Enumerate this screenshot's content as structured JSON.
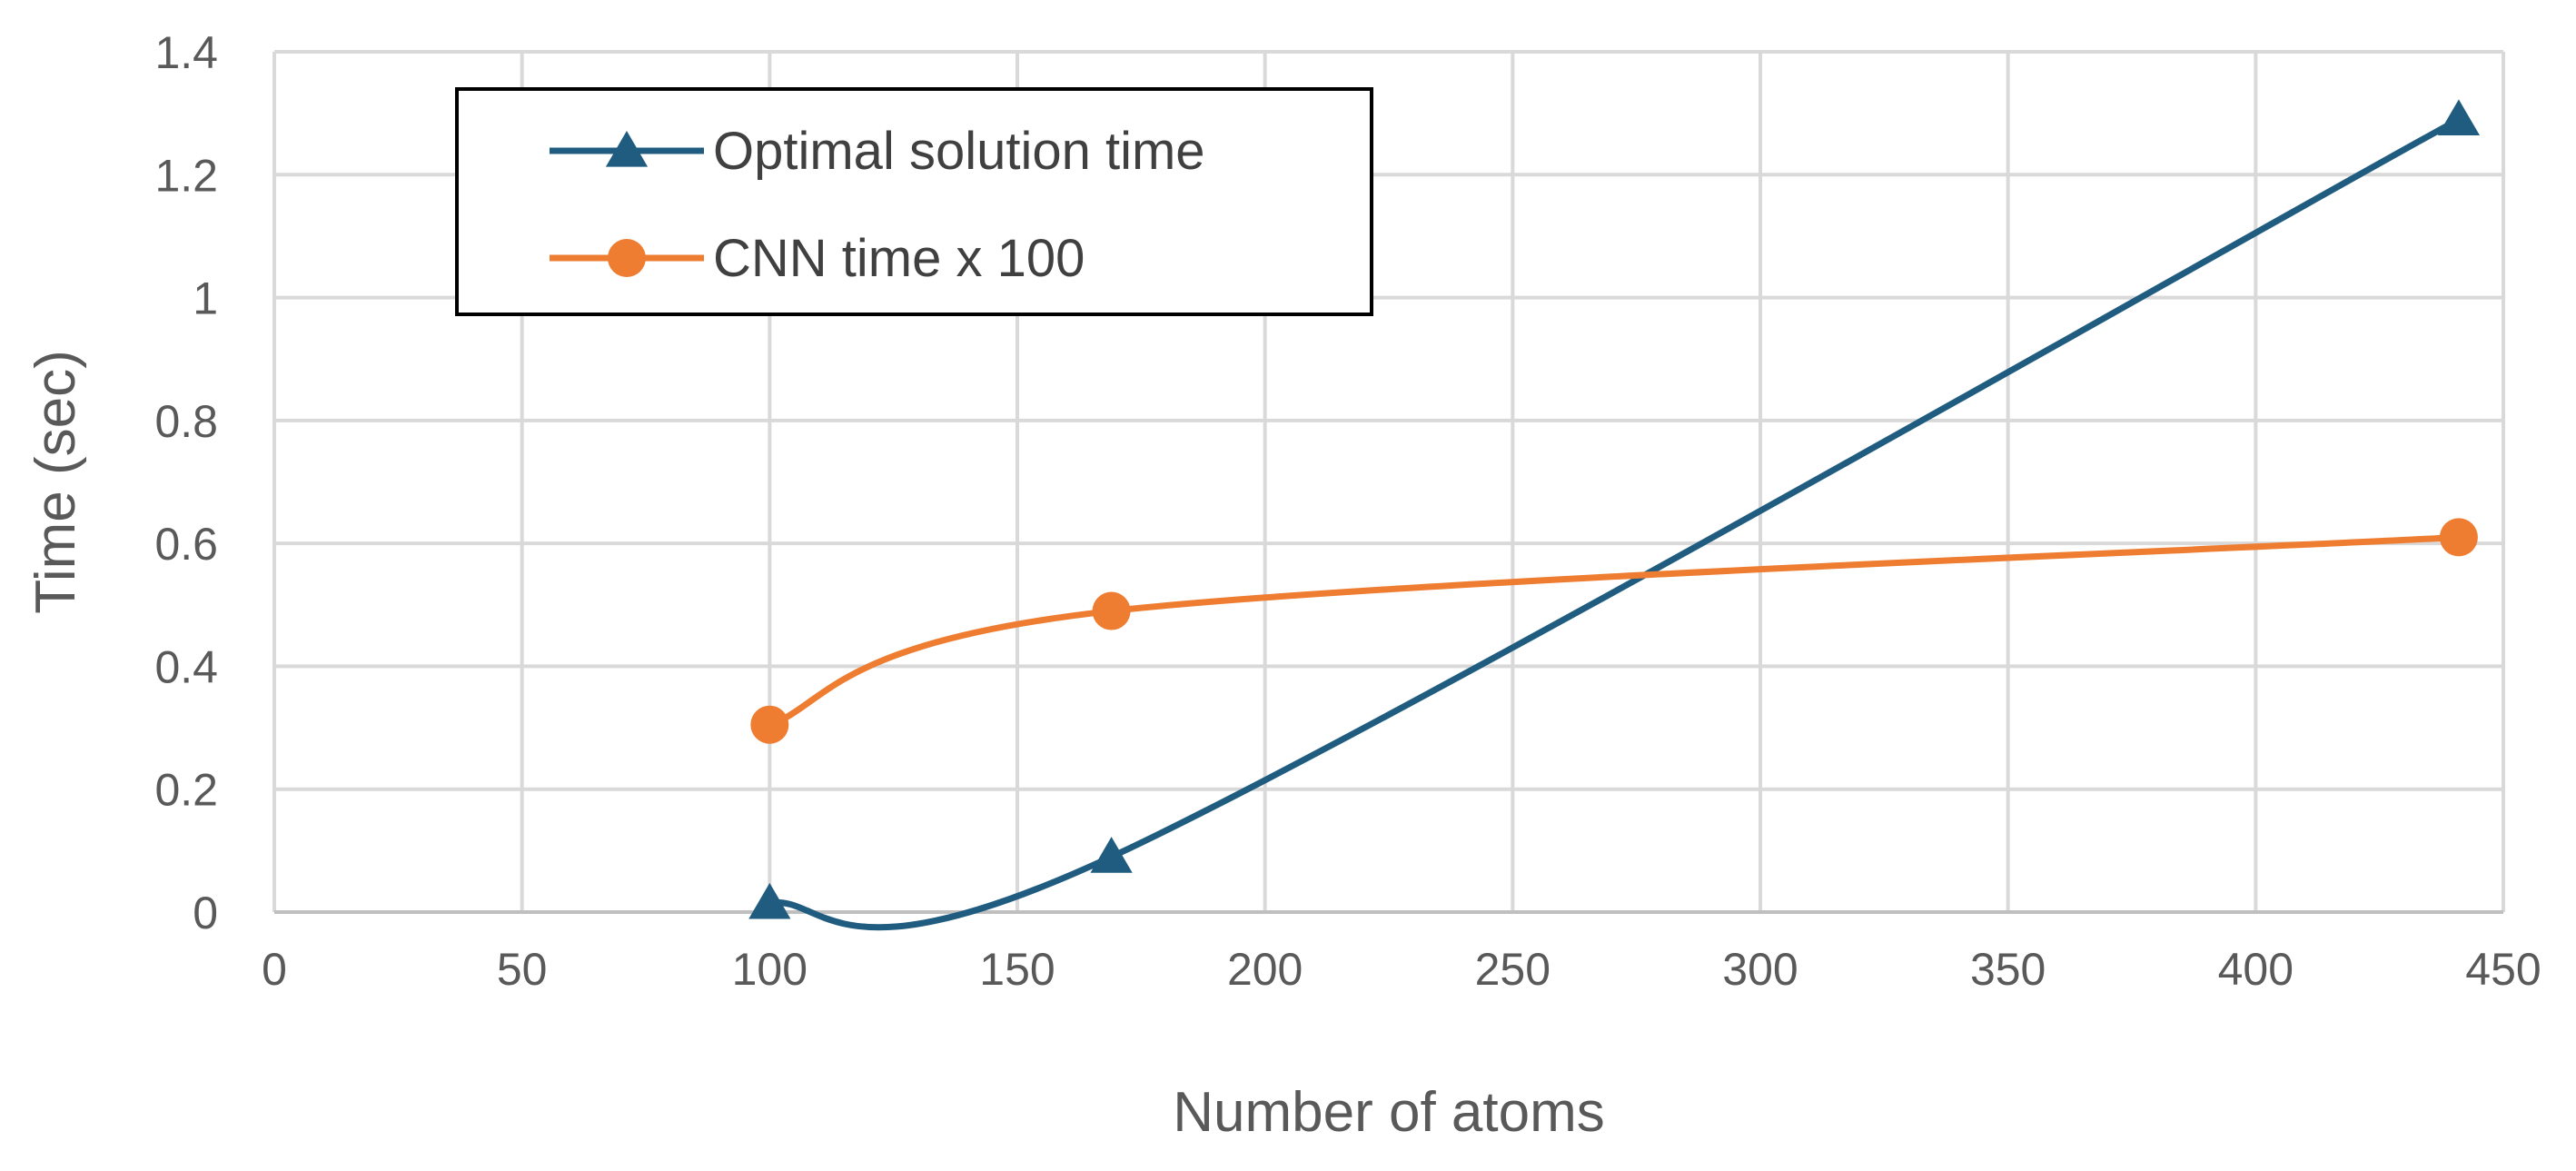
{
  "chart_data": {
    "type": "line",
    "title": "",
    "xlabel": "Number of atoms",
    "ylabel": "Time (sec)",
    "xlim": [
      0,
      450
    ],
    "ylim": [
      0,
      1.4
    ],
    "x_ticks": [
      "0",
      "50",
      "100",
      "150",
      "200",
      "250",
      "300",
      "350",
      "400",
      "450"
    ],
    "y_ticks": [
      "0",
      "0.2",
      "0.4",
      "0.6",
      "0.8",
      "1",
      "1.2",
      "1.4"
    ],
    "grid": true,
    "legend_position": "top-left",
    "smoothed": true,
    "series": [
      {
        "name": "Optimal solution time",
        "color": "#1f5c7f",
        "marker": "triangle",
        "x": [
          100,
          169,
          441
        ],
        "y": [
          0.015,
          0.09,
          1.29
        ]
      },
      {
        "name": "CNN time x 100",
        "color": "#ee7d31",
        "marker": "circle",
        "x": [
          100,
          169,
          441
        ],
        "y": [
          0.305,
          0.49,
          0.61
        ]
      }
    ]
  }
}
